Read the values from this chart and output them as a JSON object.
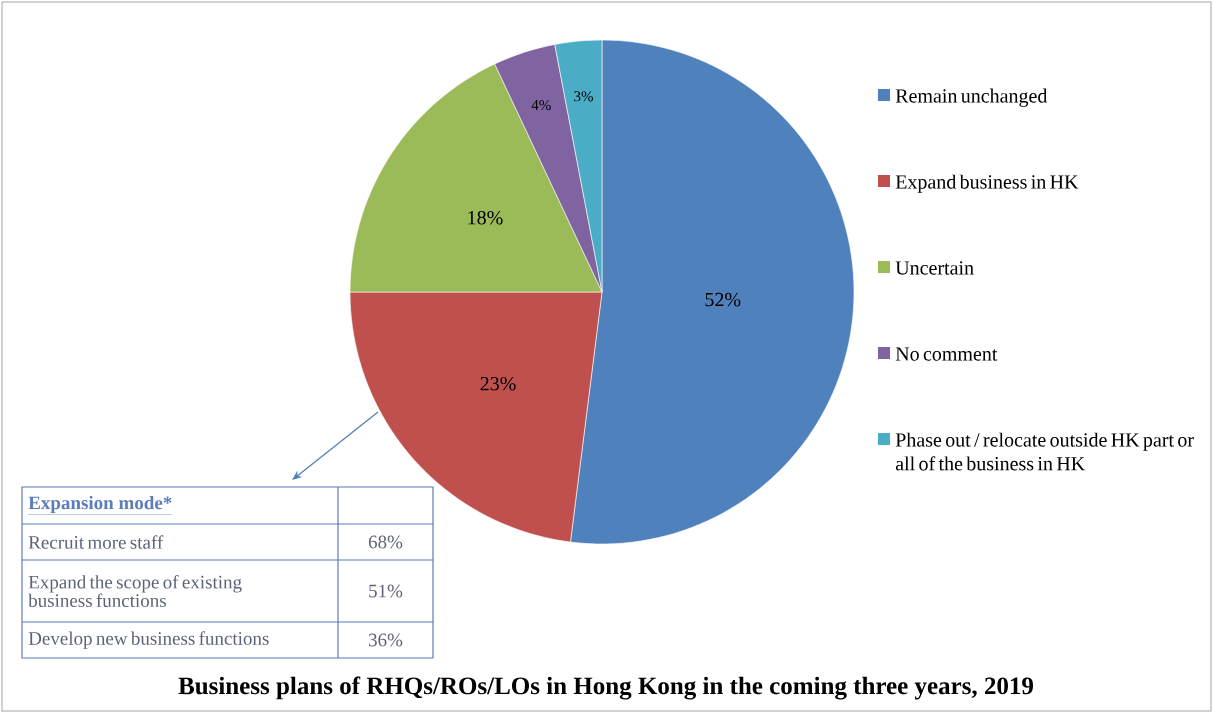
{
  "chart_data": [
    {
      "type": "pie",
      "title": "Business plans of RHQs/ROs/LOs in Hong Kong in the coming three years, 2019",
      "categories": [
        "Remain unchanged",
        "Expand business in HK",
        "Uncertain",
        "No comment",
        "Phase out / relocate outside HK part or all of the business in HK"
      ],
      "values": [
        52,
        23,
        18,
        4,
        3
      ],
      "value_labels": [
        "52%",
        "23%",
        "18%",
        "4%",
        "3%"
      ],
      "colors": [
        "#4f81bd",
        "#c0504d",
        "#9bbb59",
        "#8064a2",
        "#4bacc6"
      ],
      "legend": "right"
    },
    {
      "type": "other",
      "title": "Expansion mode*",
      "categories": [
        "Recruit more staff",
        "Expand the scope of existing business functions",
        "Develop new business functions"
      ],
      "values": [
        68,
        51,
        36
      ],
      "value_labels": [
        "68%",
        "51%",
        "36%"
      ]
    }
  ]
}
